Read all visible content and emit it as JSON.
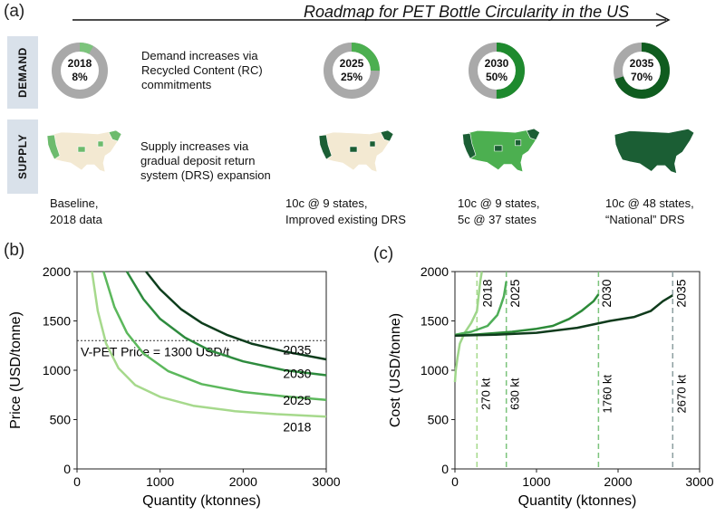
{
  "panel_a": {
    "label": "(a)",
    "title": "Roadmap for PET Bottle Circularity in the US",
    "demand_tag": "DEMAND",
    "supply_tag": "SUPPLY",
    "demand_text": "Demand increases via\nRecycled Content (RC)\ncommitments",
    "supply_text": "Supply increases via\ngradual deposit return\nsystem (DRS) expansion",
    "donuts": [
      {
        "year": "2018",
        "pct_label": "8%",
        "fraction": 0.08,
        "color": "#7cc47c"
      },
      {
        "year": "2025",
        "pct_label": "25%",
        "fraction": 0.25,
        "color": "#4caf50"
      },
      {
        "year": "2030",
        "pct_label": "50%",
        "fraction": 0.5,
        "color": "#1e8a2e"
      },
      {
        "year": "2035",
        "pct_label": "70%",
        "fraction": 0.7,
        "color": "#0f5c1f"
      }
    ],
    "statuses": [
      "Baseline,\n2018 data",
      "10c @ 9 states,\nImproved existing DRS",
      "10c @ 9 states,\n5c @ 37 states",
      "10c @ 48 states,\n“National” DRS"
    ],
    "map_colors": {
      "base": "#f3e9d2",
      "light": "#6dbb6d",
      "mid": "#4caf50",
      "dark": "#1b5e34"
    }
  },
  "chart_data": [
    {
      "id": "b",
      "label": "(b)",
      "type": "line",
      "xlabel": "Quantity (ktonnes)",
      "ylabel": "Price (USD/tonne)",
      "xlim": [
        0,
        3000
      ],
      "ylim": [
        0,
        2000
      ],
      "xticks": [
        0,
        1000,
        2000,
        3000
      ],
      "yticks": [
        0,
        500,
        1000,
        1500,
        2000
      ],
      "reference": {
        "y": 1300,
        "label": "V-PET Price = 1300 USD/t"
      },
      "series": [
        {
          "name": "2018",
          "color": "#a6d98c",
          "x": [
            180,
            250,
            350,
            500,
            700,
            1000,
            1400,
            1900,
            2400,
            3000
          ],
          "y": [
            2000,
            1600,
            1270,
            1020,
            850,
            730,
            640,
            585,
            555,
            530
          ]
        },
        {
          "name": "2025",
          "color": "#5cb85c",
          "x": [
            320,
            450,
            600,
            800,
            1100,
            1500,
            2000,
            2500,
            3000
          ],
          "y": [
            2000,
            1640,
            1380,
            1170,
            990,
            860,
            780,
            735,
            700
          ]
        },
        {
          "name": "2030",
          "color": "#2e8b3e",
          "x": [
            600,
            800,
            1000,
            1300,
            1600,
            2000,
            2500,
            3000
          ],
          "y": [
            2000,
            1720,
            1520,
            1330,
            1200,
            1090,
            1000,
            950
          ]
        },
        {
          "name": "2035",
          "color": "#0d3d1c",
          "x": [
            830,
            1000,
            1250,
            1500,
            1800,
            2100,
            2500,
            3000
          ],
          "y": [
            2000,
            1820,
            1620,
            1480,
            1360,
            1270,
            1190,
            1110
          ]
        }
      ],
      "series_labels": [
        {
          "text": "2035",
          "x": 2650,
          "y": 1160
        },
        {
          "text": "2030",
          "x": 2650,
          "y": 920
        },
        {
          "text": "2025",
          "x": 2650,
          "y": 650
        },
        {
          "text": "2018",
          "x": 2650,
          "y": 380
        }
      ]
    },
    {
      "id": "c",
      "label": "(c)",
      "type": "line",
      "xlabel": "Quantity (ktonnes)",
      "ylabel": "Cost (USD/tonne)",
      "xlim": [
        0,
        3000
      ],
      "ylim": [
        0,
        2000
      ],
      "xticks": [
        0,
        1000,
        2000,
        3000
      ],
      "yticks": [
        0,
        500,
        1000,
        1500,
        2000
      ],
      "series": [
        {
          "name": "2018",
          "color": "#9fd68a",
          "x": [
            0,
            10,
            30,
            60,
            120,
            200,
            270,
            290,
            310,
            330
          ],
          "y": [
            880,
            1000,
            1120,
            1270,
            1380,
            1480,
            1600,
            1750,
            1900,
            2000
          ]
        },
        {
          "name": "2025",
          "color": "#4fae58",
          "x": [
            0,
            200,
            400,
            520,
            560,
            600,
            630
          ],
          "y": [
            1360,
            1390,
            1450,
            1560,
            1650,
            1750,
            1900
          ]
        },
        {
          "name": "2030",
          "color": "#2c8a38",
          "x": [
            0,
            300,
            700,
            1000,
            1200,
            1400,
            1550,
            1700,
            1760
          ],
          "y": [
            1350,
            1365,
            1390,
            1420,
            1450,
            1520,
            1600,
            1700,
            1770
          ]
        },
        {
          "name": "2035",
          "color": "#0f3b1c",
          "x": [
            0,
            500,
            1000,
            1500,
            1900,
            2200,
            2400,
            2550,
            2670
          ],
          "y": [
            1350,
            1360,
            1380,
            1430,
            1500,
            1540,
            1600,
            1700,
            1760
          ]
        }
      ],
      "vlines": [
        {
          "x": 270,
          "label": "270 kt",
          "color": "#a6d98c"
        },
        {
          "x": 630,
          "label": "630 kt",
          "color": "#7cc47c"
        },
        {
          "x": 1760,
          "label": "1760 kt",
          "color": "#7cc47c"
        },
        {
          "x": 2670,
          "label": "2670 kt",
          "color": "#8c9ea0"
        }
      ],
      "year_labels": [
        {
          "text": "2018",
          "x": 450,
          "y": 1780
        },
        {
          "text": "2025",
          "x": 790,
          "y": 1780
        },
        {
          "text": "2030",
          "x": 1910,
          "y": 1780
        },
        {
          "text": "2035",
          "x": 2830,
          "y": 1780
        }
      ]
    }
  ]
}
